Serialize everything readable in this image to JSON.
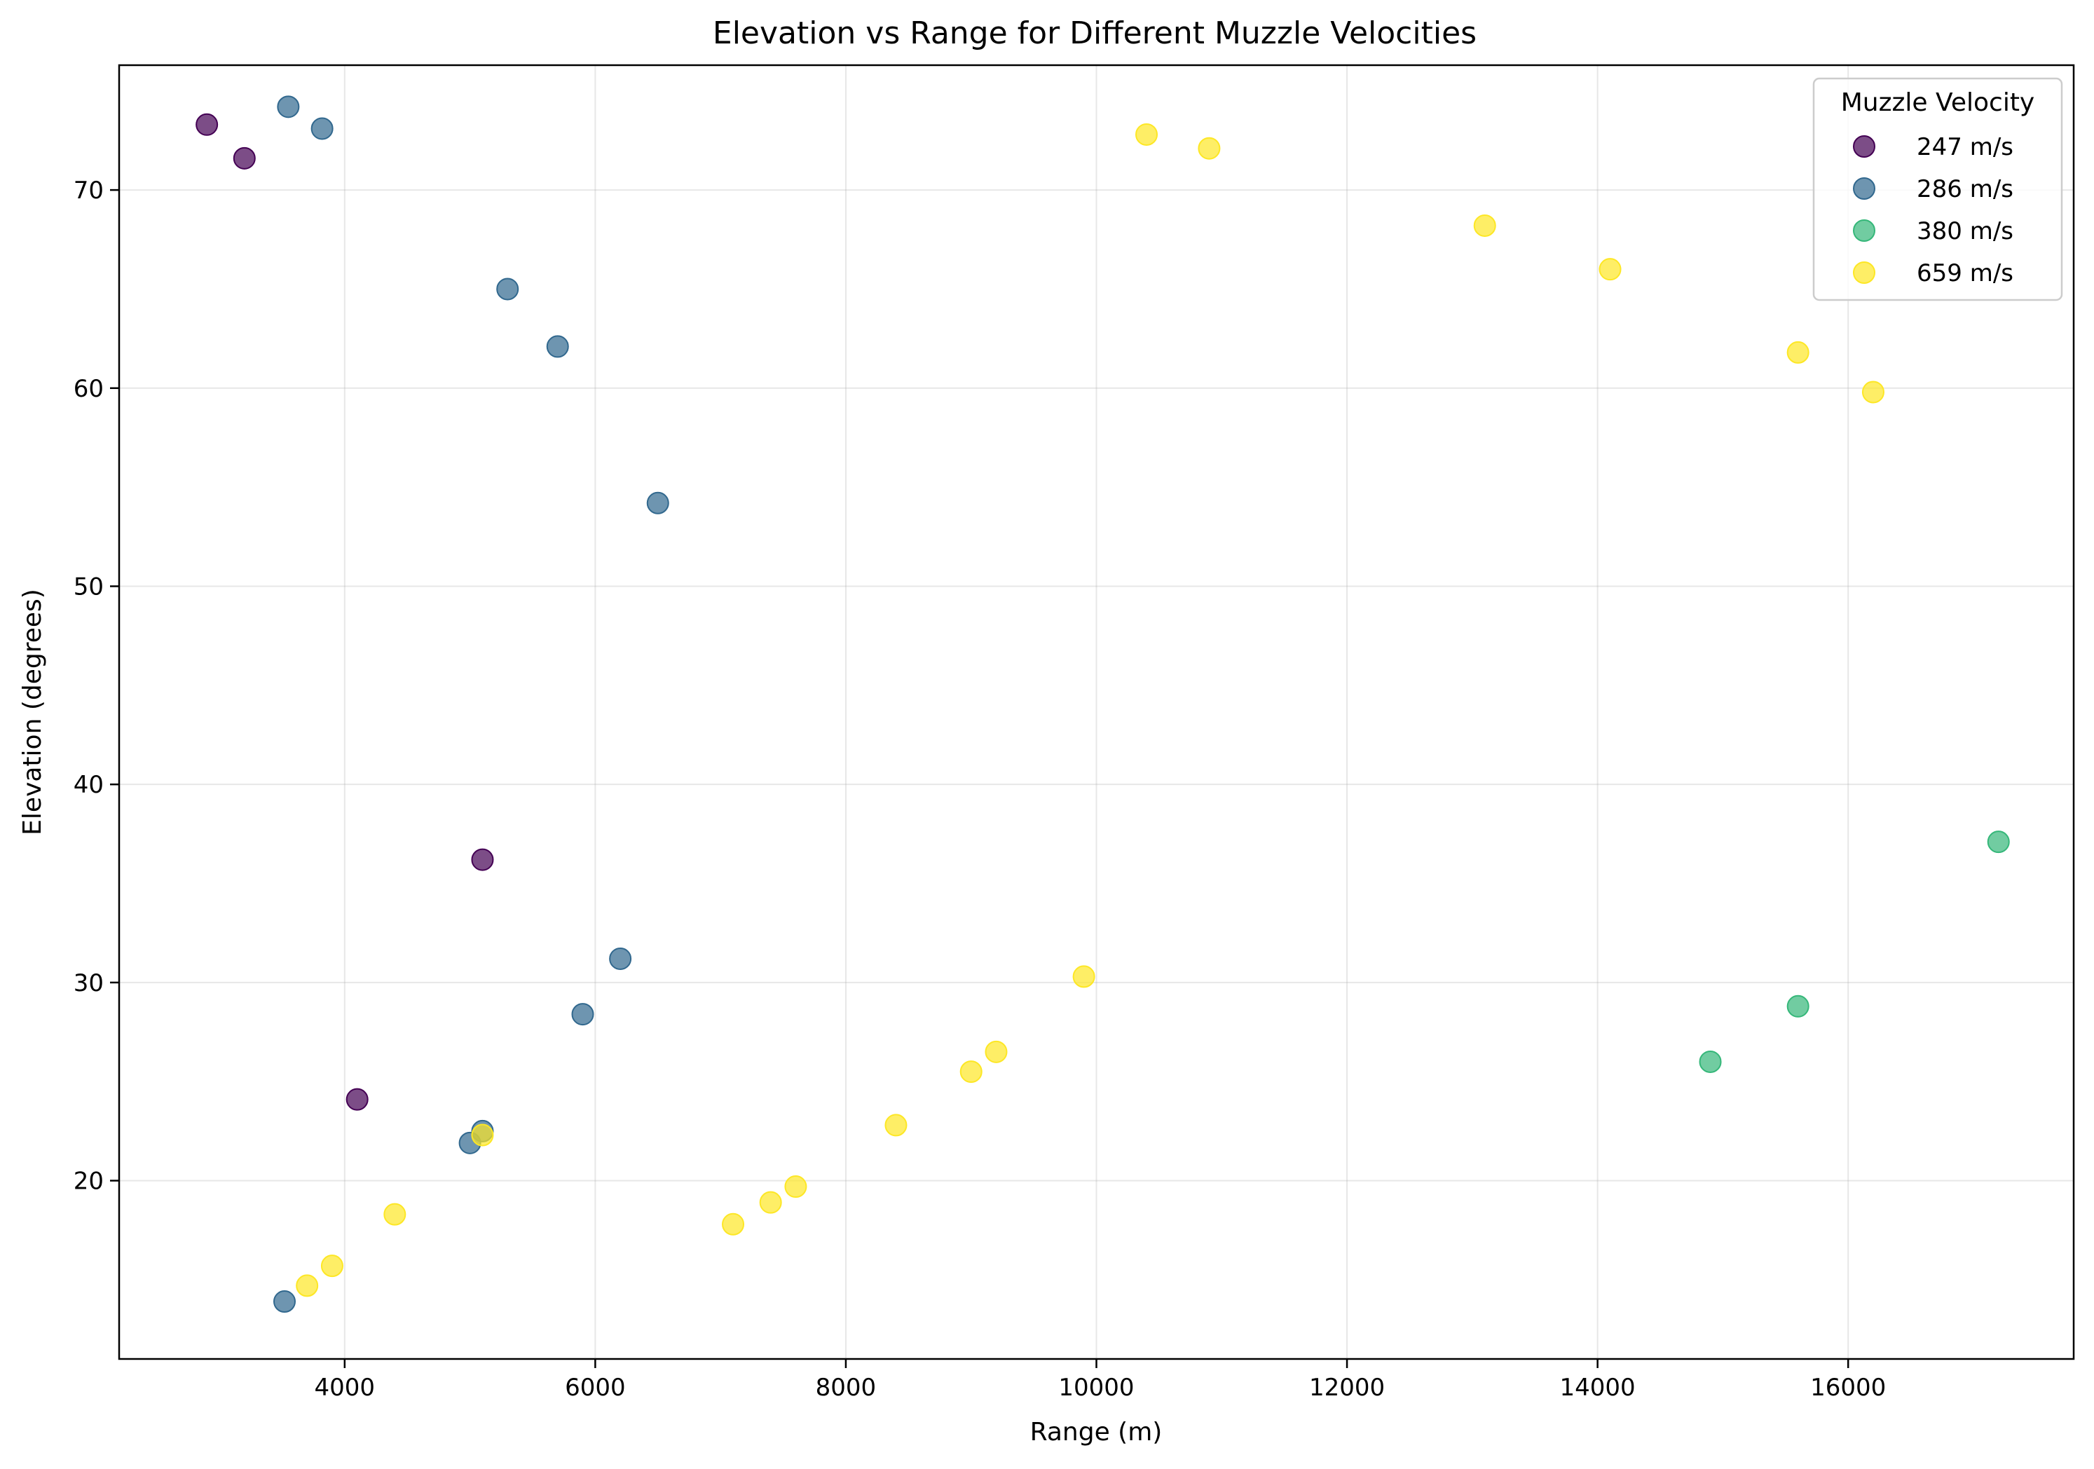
{
  "chart_data": {
    "type": "scatter",
    "title": "Elevation vs Range for Different Muzzle Velocities",
    "xlabel": "Range (m)",
    "ylabel": "Elevation (degrees)",
    "xlim": [
      2200,
      17800
    ],
    "ylim": [
      11,
      76.3
    ],
    "x_ticks": [
      4000,
      6000,
      8000,
      10000,
      12000,
      14000,
      16000
    ],
    "y_ticks": [
      20,
      30,
      40,
      50,
      60,
      70
    ],
    "grid": true,
    "legend_title": "Muzzle Velocity",
    "legend_position": "top-right",
    "marker_alpha": 0.7,
    "series": [
      {
        "name": "247 m/s",
        "color": "#440154",
        "points": [
          {
            "x": 2900,
            "y": 73.3
          },
          {
            "x": 3200,
            "y": 71.6
          },
          {
            "x": 5100,
            "y": 36.2
          },
          {
            "x": 4100,
            "y": 24.1
          }
        ]
      },
      {
        "name": "286 m/s",
        "color": "#31688e",
        "points": [
          {
            "x": 3550,
            "y": 74.2
          },
          {
            "x": 3820,
            "y": 73.1
          },
          {
            "x": 5300,
            "y": 65.0
          },
          {
            "x": 5700,
            "y": 62.1
          },
          {
            "x": 6500,
            "y": 54.2
          },
          {
            "x": 6200,
            "y": 31.2
          },
          {
            "x": 5900,
            "y": 28.4
          },
          {
            "x": 5100,
            "y": 22.5
          },
          {
            "x": 5000,
            "y": 21.9
          },
          {
            "x": 3520,
            "y": 13.9
          }
        ]
      },
      {
        "name": "380 m/s",
        "color": "#35b779",
        "points": [
          {
            "x": 17200,
            "y": 37.1
          },
          {
            "x": 15600,
            "y": 28.8
          },
          {
            "x": 14900,
            "y": 26.0
          }
        ]
      },
      {
        "name": "659 m/s",
        "color": "#fde725",
        "points": [
          {
            "x": 10400,
            "y": 72.8
          },
          {
            "x": 10900,
            "y": 72.1
          },
          {
            "x": 13100,
            "y": 68.2
          },
          {
            "x": 14100,
            "y": 66.0
          },
          {
            "x": 15600,
            "y": 61.8
          },
          {
            "x": 16200,
            "y": 59.8
          },
          {
            "x": 9900,
            "y": 30.3
          },
          {
            "x": 9200,
            "y": 26.5
          },
          {
            "x": 9000,
            "y": 25.5
          },
          {
            "x": 8400,
            "y": 22.8
          },
          {
            "x": 5100,
            "y": 22.3
          },
          {
            "x": 4400,
            "y": 18.3
          },
          {
            "x": 7600,
            "y": 19.7
          },
          {
            "x": 7400,
            "y": 18.9
          },
          {
            "x": 7100,
            "y": 17.8
          },
          {
            "x": 3900,
            "y": 15.7
          },
          {
            "x": 3700,
            "y": 14.7
          }
        ]
      }
    ]
  }
}
